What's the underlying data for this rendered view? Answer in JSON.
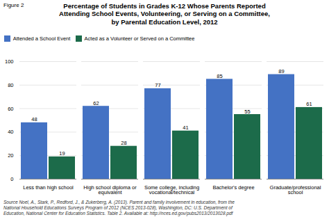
{
  "chart_data": {
    "type": "bar",
    "title": "Percentage of Students in Grades K-12 Whose Parents Reported\nAttending School Events, Volunteering, or Serving on a Committee,\nby Parental Education Level, 2012",
    "annotations": [
      "Figure 2",
      "Source Noel, A., Stark, P., Redford, J., & Zukerberg, A. (2013). Parent and family involvement in education, from the\nNational Household Educations Surveys Program of 2012 (NCES 2013-028), Washington, DC: U.S. Department of\nEducation, National Center for Education Statistics. Table 2. Available at:  http://nces.ed.gov/pubs2013/2013028.pdf"
    ],
    "categories": [
      "Less than high school",
      "High school diploma or\nequivalent",
      "Some college, including\nvocational/technical",
      "Bachelor's degree",
      "Graduate/professional\nschool"
    ],
    "series": [
      {
        "name": "Attended a School Event",
        "color": "#4472C4",
        "values": [
          48,
          62,
          77,
          85,
          89
        ]
      },
      {
        "name": "Acted as a Volunteer or Served on a Committee",
        "color": "#1C6B4A",
        "values": [
          19,
          28,
          41,
          55,
          61
        ]
      }
    ],
    "ylim": [
      0,
      100
    ],
    "yticks": [
      0,
      20,
      40,
      60,
      80,
      100
    ],
    "grid": true,
    "legend": "upper left",
    "data_labels": true
  }
}
